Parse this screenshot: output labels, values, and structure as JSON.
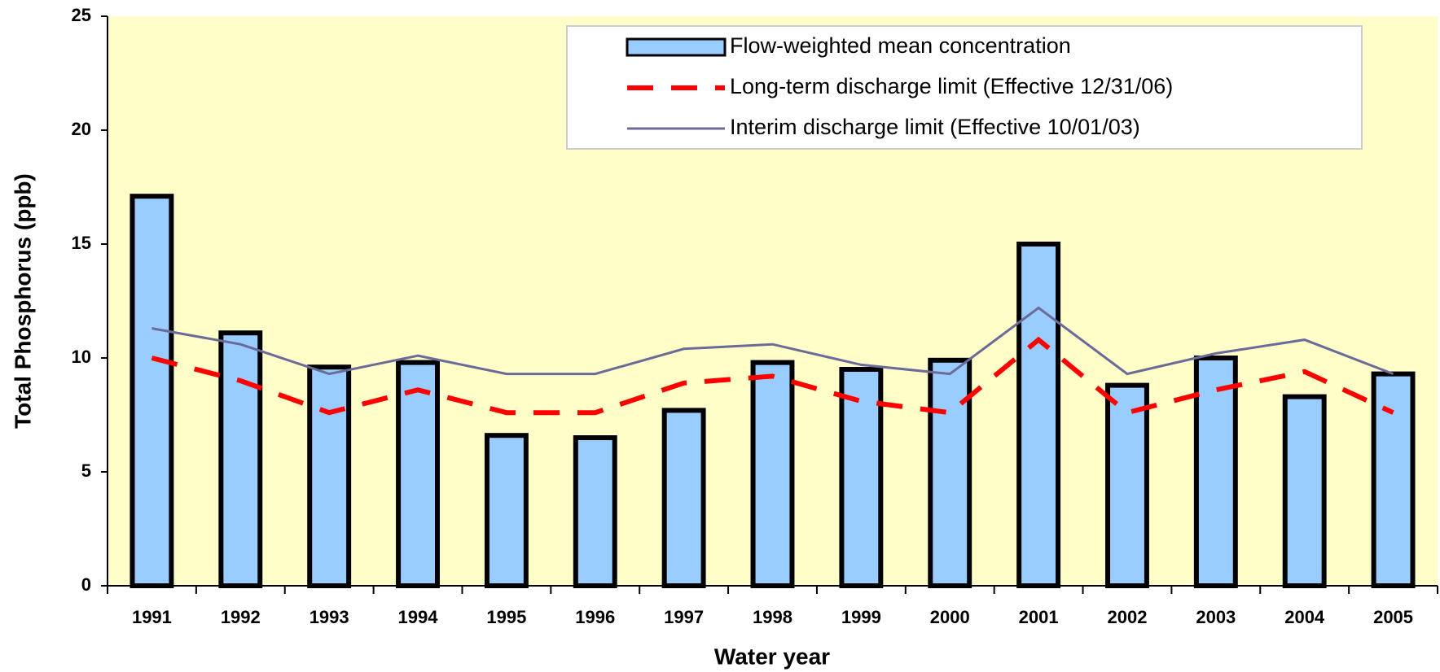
{
  "chart_data": {
    "type": "bar",
    "x_label": "Water year",
    "y_label": "Total Phosphorus (ppb)",
    "categories": [
      "1991",
      "1992",
      "1993",
      "1994",
      "1995",
      "1996",
      "1997",
      "1998",
      "1999",
      "2000",
      "2001",
      "2002",
      "2003",
      "2004",
      "2005"
    ],
    "series": [
      {
        "name": "Flow-weighted mean concentration",
        "type": "bar",
        "color": "#99ccff",
        "values": [
          17.1,
          11.1,
          9.6,
          9.8,
          6.6,
          6.5,
          7.7,
          9.8,
          9.5,
          9.9,
          15.0,
          8.8,
          10.0,
          8.3,
          9.3
        ]
      },
      {
        "name": "Long-term discharge limit (Effective 12/31/06)",
        "type": "line",
        "dashed": true,
        "color": "#ff0000",
        "values": [
          10.0,
          9.0,
          7.6,
          8.6,
          7.6,
          7.6,
          8.9,
          9.2,
          8.1,
          7.6,
          10.8,
          7.6,
          8.6,
          9.4,
          7.6
        ]
      },
      {
        "name": "Interim discharge limit (Effective 10/01/03)",
        "type": "line",
        "dashed": false,
        "color": "#6b6b99",
        "values": [
          11.3,
          10.6,
          9.3,
          10.1,
          9.3,
          9.3,
          10.4,
          10.6,
          9.7,
          9.3,
          12.2,
          9.3,
          10.2,
          10.8,
          9.3
        ]
      }
    ],
    "ylim": [
      0,
      25
    ],
    "yticks": [
      0,
      5,
      10,
      15,
      20,
      25
    ],
    "background": "#fffdc8"
  }
}
